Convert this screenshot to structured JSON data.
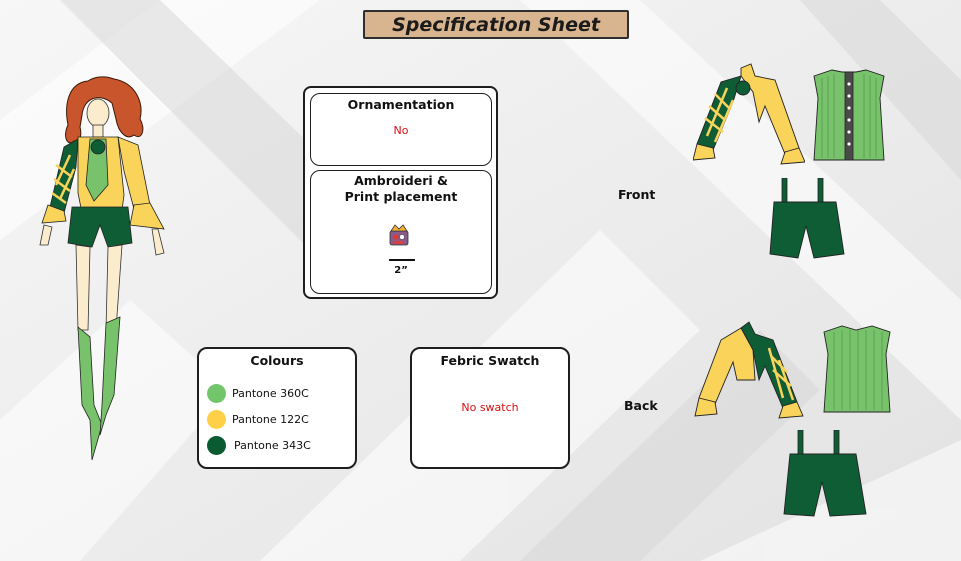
{
  "header": {
    "title": "Specification Sheet"
  },
  "ornamentation": {
    "title": "Ornamentation",
    "value": "No"
  },
  "embroidery": {
    "title_line1": "Ambroideri &",
    "title_line2": "Print placement",
    "size": "2”"
  },
  "colours": {
    "title": "Colours",
    "items": [
      {
        "label": "Pantone 360C",
        "color": "#72c56b"
      },
      {
        "label": "Pantone 122C",
        "color": "#fed048"
      },
      {
        "label": "Pantone 343C",
        "color": "#0a5a32"
      }
    ]
  },
  "fabric": {
    "title": "Febric Swatch",
    "value": "No swatch"
  },
  "views": {
    "front": "Front",
    "back": "Back"
  },
  "palette": {
    "yellow": "#f9d35a",
    "light_green": "#79c26c",
    "dark_green": "#0f5d35",
    "hair": "#c9552d",
    "skin": "#fbeccd"
  }
}
